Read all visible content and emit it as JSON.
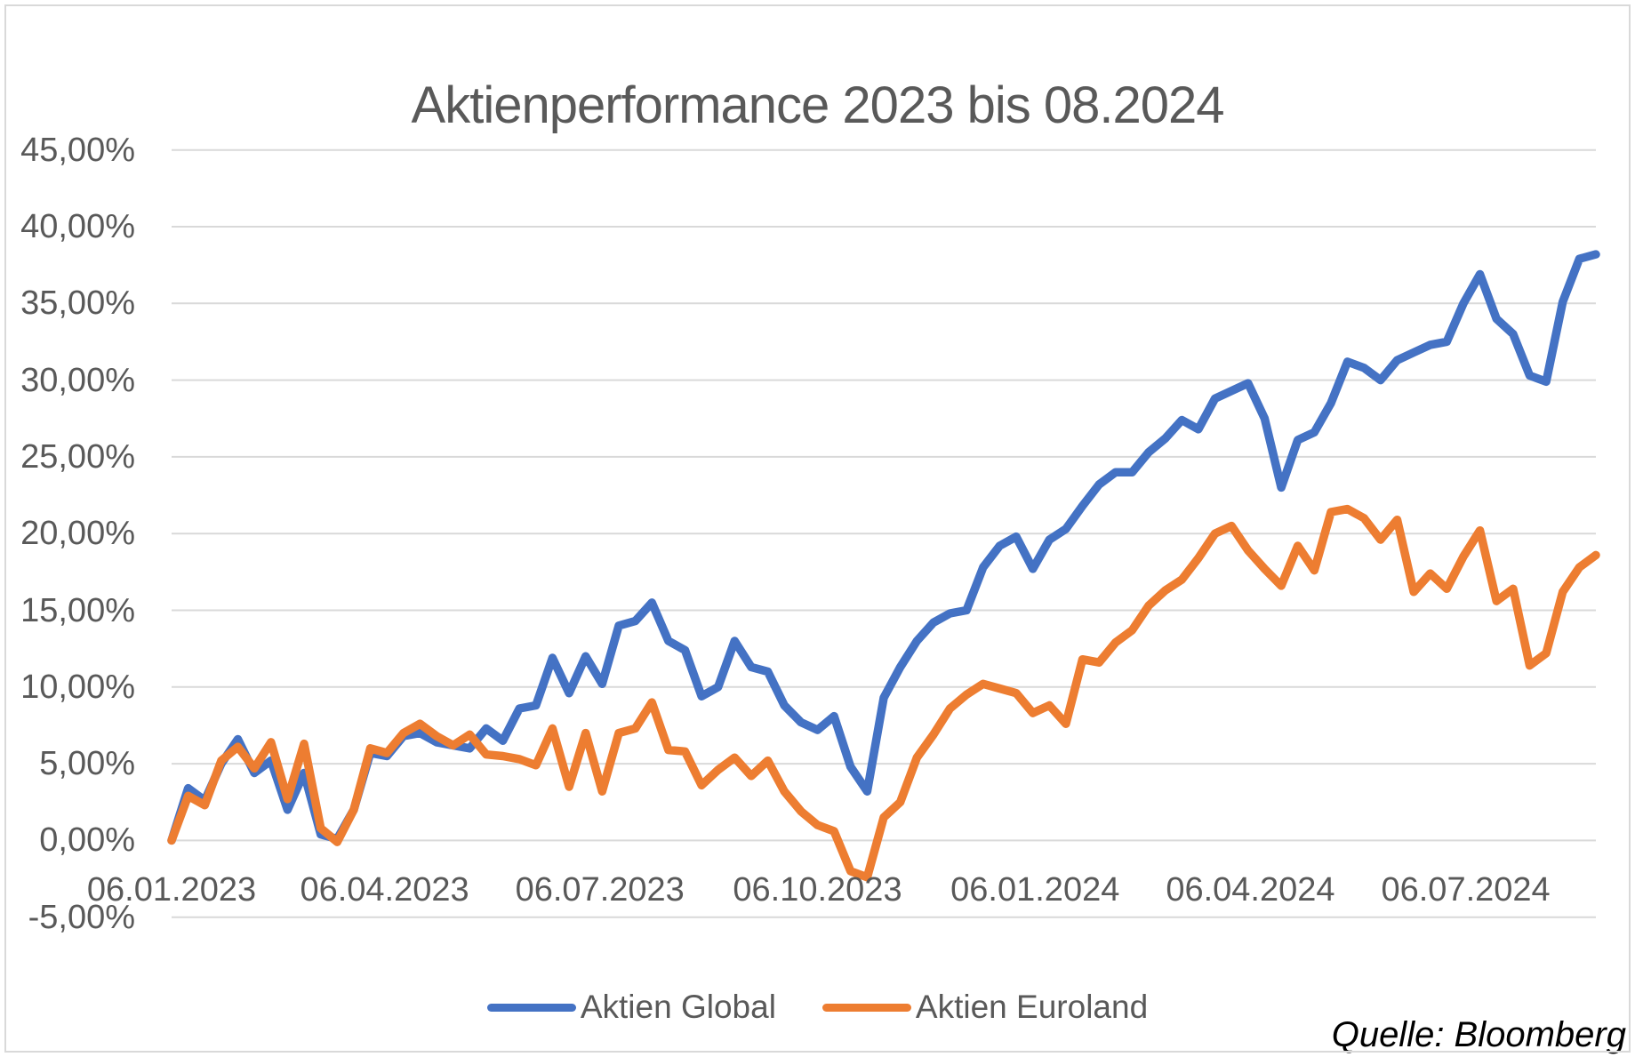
{
  "source": "Quelle: Bloomberg",
  "colors": {
    "grid": "#D9D9D9",
    "text": "#595959",
    "series_global": "#4472C4",
    "series_euroland": "#ED7D31"
  },
  "chart_data": {
    "type": "line",
    "title": "Aktienperformance 2023 bis 08.2024",
    "xlabel": "",
    "ylabel": "",
    "ylim": [
      -5,
      45
    ],
    "grid": true,
    "legend_position": "bottom",
    "frequency": "weekly",
    "x_total_weeks": 86,
    "x_tick_labels": [
      {
        "label": "06.01.2023",
        "week": 0
      },
      {
        "label": "06.04.2023",
        "week": 12.86
      },
      {
        "label": "06.07.2023",
        "week": 25.86
      },
      {
        "label": "06.10.2023",
        "week": 39
      },
      {
        "label": "06.01.2024",
        "week": 52.14
      },
      {
        "label": "06.04.2024",
        "week": 65.14
      },
      {
        "label": "06.07.2024",
        "week": 78.14
      }
    ],
    "y_ticks": {
      "labels": [
        "45,00%",
        "40,00%",
        "35,00%",
        "30,00%",
        "25,00%",
        "20,00%",
        "15,00%",
        "10,00%",
        "5,00%",
        "0,00%",
        "-5,00%"
      ],
      "values": [
        45,
        40,
        35,
        30,
        25,
        20,
        15,
        10,
        5,
        0,
        -5
      ]
    },
    "series": [
      {
        "name": "Aktien Global",
        "color": "#4472C4",
        "values": [
          0,
          3.4,
          2.6,
          5,
          6.6,
          4.4,
          5.2,
          2,
          4.4,
          0.4,
          0.1,
          2,
          5.7,
          5.5,
          6.8,
          7,
          6.4,
          6.2,
          6,
          7.3,
          6.5,
          8.6,
          8.8,
          11.9,
          9.6,
          12,
          10.2,
          14,
          14.3,
          15.5,
          13,
          12.4,
          9.4,
          10,
          13,
          11.3,
          11,
          8.8,
          7.7,
          7.2,
          8.1,
          4.8,
          3.2,
          9.3,
          11.3,
          13,
          14.2,
          14.8,
          15,
          17.8,
          19.2,
          19.8,
          17.7,
          19.6,
          20.3,
          21.8,
          23.2,
          24,
          24,
          25.3,
          26.2,
          27.4,
          26.8,
          28.8,
          29.3,
          29.8,
          27.5,
          23,
          26.1,
          26.6,
          28.5,
          31.2,
          30.8,
          30,
          31.3,
          31.8,
          32.3,
          32.5,
          35,
          36.9,
          34,
          33,
          30.3,
          29.9,
          35.1,
          37.9,
          38.2
        ]
      },
      {
        "name": "Aktien Euroland",
        "color": "#ED7D31",
        "values": [
          0,
          2.9,
          2.3,
          5.2,
          6.1,
          4.7,
          6.4,
          2.7,
          6.3,
          0.8,
          -0.1,
          2,
          6,
          5.7,
          7,
          7.6,
          6.8,
          6.2,
          6.9,
          5.6,
          5.5,
          5.3,
          4.9,
          7.3,
          3.5,
          7,
          3.2,
          7,
          7.3,
          9,
          5.9,
          5.8,
          3.6,
          4.6,
          5.4,
          4.2,
          5.2,
          3.2,
          1.9,
          1,
          0.6,
          -2,
          -2.4,
          1.5,
          2.5,
          5.4,
          6.9,
          8.6,
          9.5,
          10.2,
          9.9,
          9.6,
          8.3,
          8.8,
          7.6,
          11.8,
          11.6,
          12.9,
          13.7,
          15.3,
          16.3,
          17,
          18.4,
          20,
          20.5,
          18.9,
          17.7,
          16.6,
          19.2,
          17.6,
          21.4,
          21.6,
          21,
          19.6,
          20.9,
          16.2,
          17.4,
          16.4,
          18.5,
          20.2,
          15.6,
          16.4,
          11.4,
          12.2,
          16.2,
          17.8,
          18.6
        ]
      }
    ]
  }
}
